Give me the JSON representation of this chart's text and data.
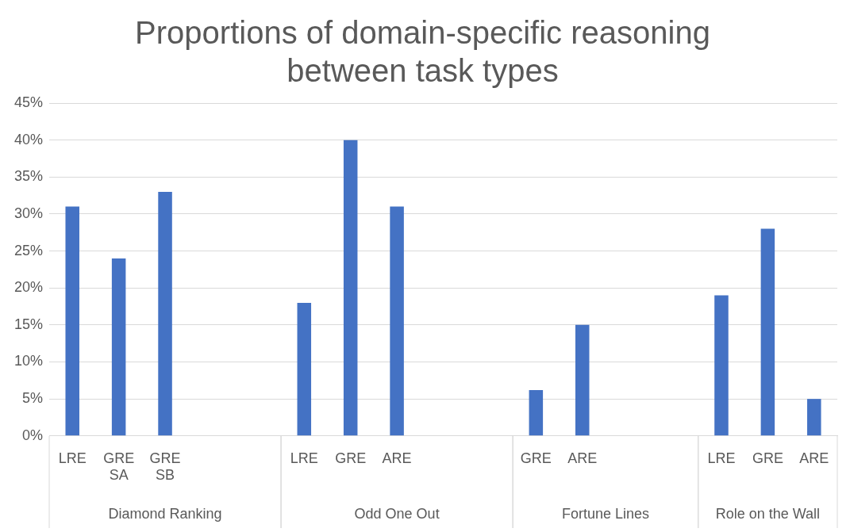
{
  "chart_data": {
    "type": "bar",
    "title": "Proportions of domain-specific reasoning between task types",
    "categories": [
      "LRE",
      "GRE SA",
      "GRE SB",
      null,
      null,
      "LRE",
      "GRE",
      "ARE",
      null,
      null,
      "GRE",
      "ARE",
      null,
      null,
      "LRE",
      "GRE",
      "ARE"
    ],
    "values": [
      31,
      24,
      33,
      null,
      null,
      18,
      40,
      31,
      null,
      null,
      6.2,
      15,
      null,
      null,
      19,
      28,
      5
    ],
    "color": "#4472c4",
    "annotations": [
      "Diamond Ranking",
      "Odd One Out",
      "Fortune Lines",
      "Role on the Wall"
    ],
    "ylim": [
      0,
      45
    ],
    "yticks": [
      {
        "value": 0,
        "label": "0%"
      },
      {
        "value": 5,
        "label": "5%"
      },
      {
        "value": 10,
        "label": "10%"
      },
      {
        "value": 15,
        "label": "15%"
      },
      {
        "value": 20,
        "label": "20%"
      },
      {
        "value": 25,
        "label": "25%"
      },
      {
        "value": 30,
        "label": "30%"
      },
      {
        "value": 35,
        "label": "35%"
      },
      {
        "value": 40,
        "label": "40%"
      },
      {
        "value": 45,
        "label": "45%"
      }
    ],
    "grid": "y",
    "legend": false
  }
}
